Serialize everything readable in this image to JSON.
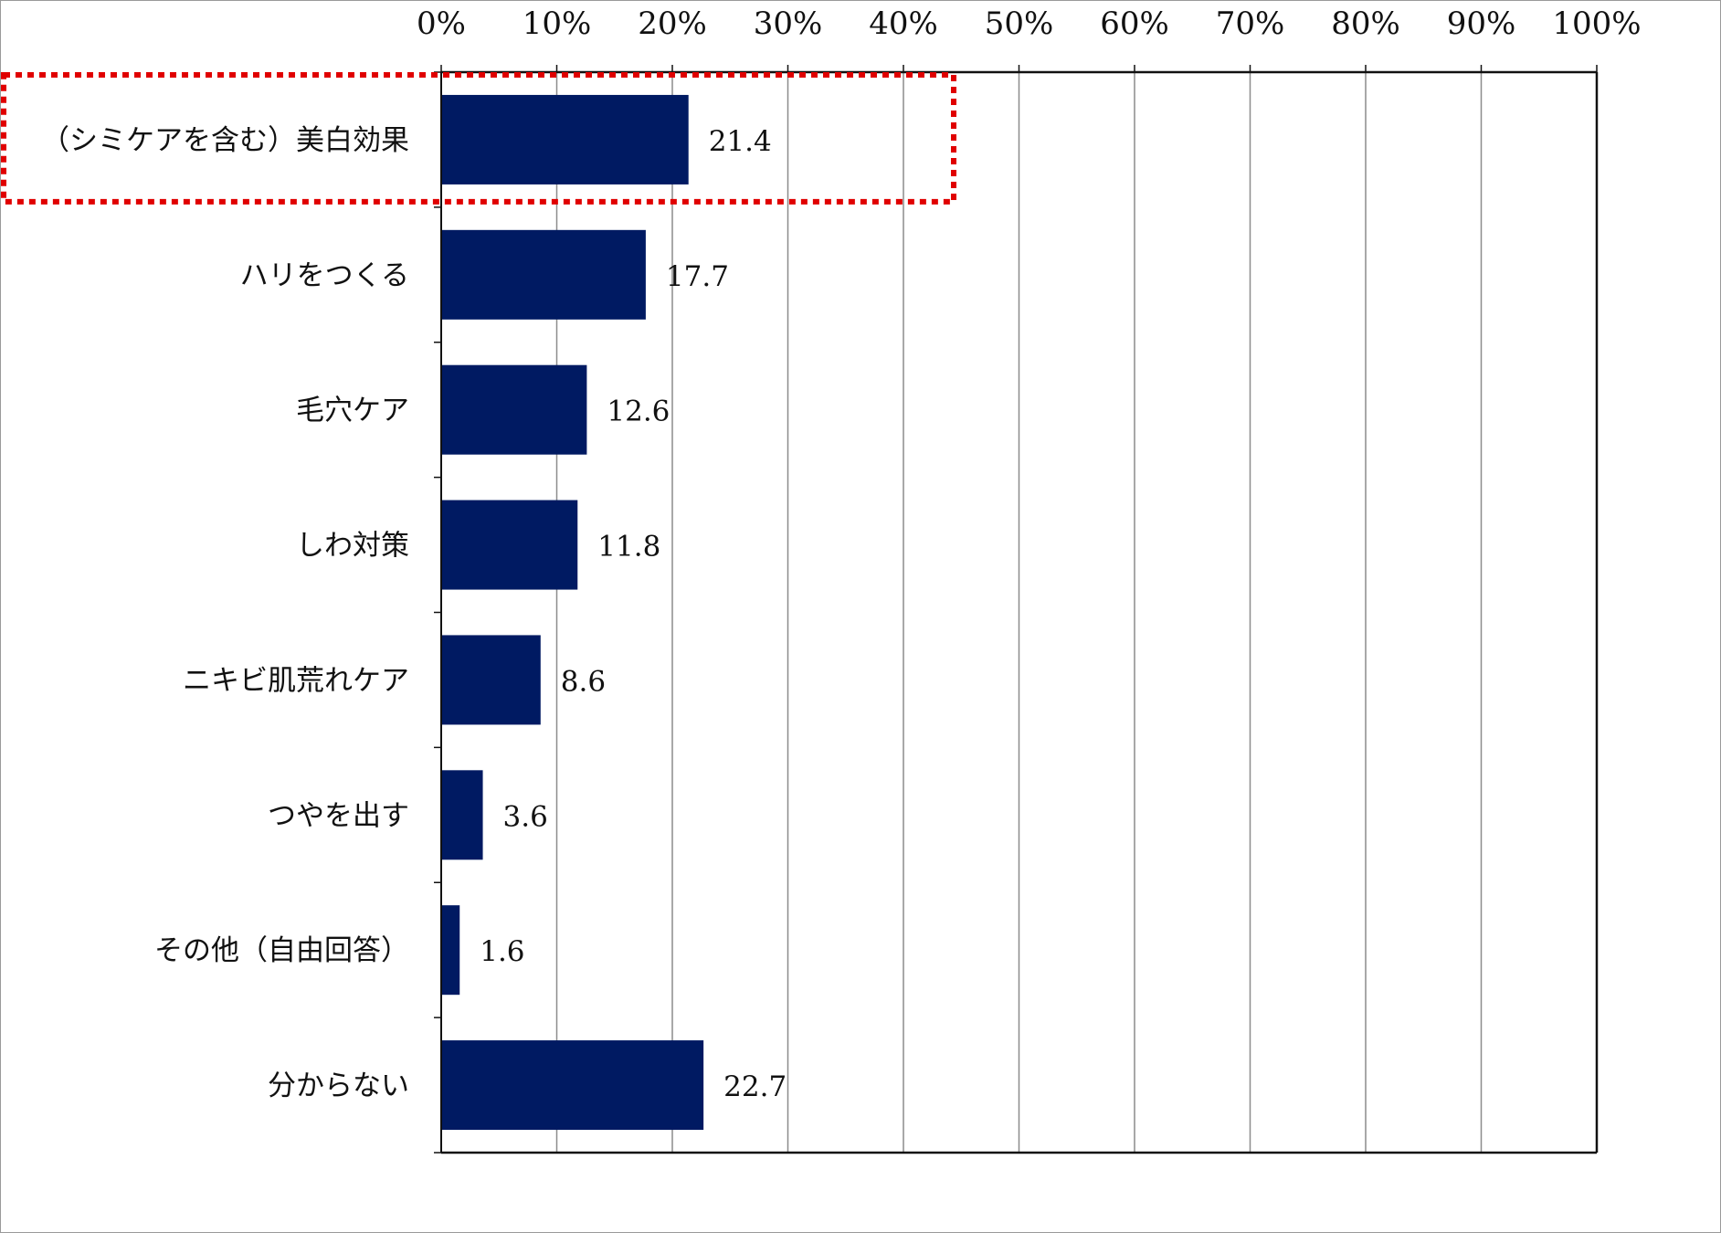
{
  "chart_data": {
    "type": "bar",
    "orientation": "horizontal",
    "categories": [
      "（シミケアを含む）美白効果",
      "ハリをつくる",
      "毛穴ケア",
      "しわ対策",
      "ニキビ肌荒れケア",
      "つやを出す",
      "その他（自由回答）",
      "分からない"
    ],
    "values": [
      21.4,
      17.7,
      12.6,
      11.8,
      8.6,
      3.6,
      1.6,
      22.7
    ],
    "value_labels": [
      "21.4",
      "17.7",
      "12.6",
      "11.8",
      "8.6",
      "3.6",
      "1.6",
      "22.7"
    ],
    "xlim": [
      0,
      100
    ],
    "x_ticks": [
      0,
      10,
      20,
      30,
      40,
      50,
      60,
      70,
      80,
      90,
      100
    ],
    "x_tick_labels": [
      "0%",
      "10%",
      "20%",
      "30%",
      "40%",
      "50%",
      "60%",
      "70%",
      "80%",
      "90%",
      "100%"
    ],
    "x_axis_position": "top",
    "grid": true,
    "highlight": {
      "category_index": 0,
      "style": "red dotted box"
    },
    "title": "",
    "xlabel": "",
    "ylabel": ""
  },
  "colors": {
    "bar": "#001a62",
    "grid": "#8c8c8c",
    "axis": "#111111",
    "highlight": "#e00000",
    "frame": "#9a9a9a"
  }
}
